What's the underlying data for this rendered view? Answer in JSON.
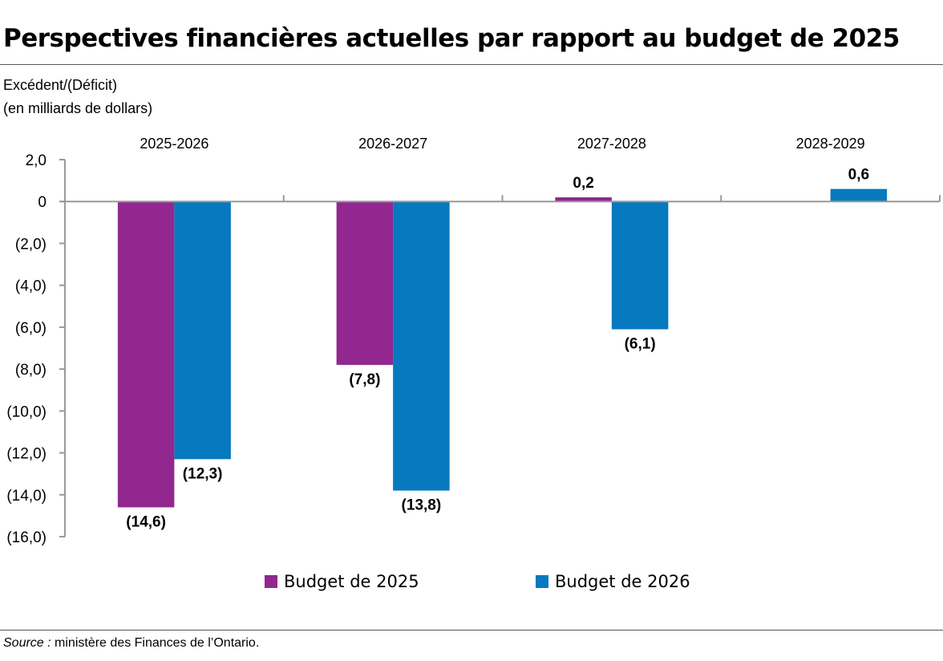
{
  "title": "Perspectives financières actuelles par rapport au budget de 2025",
  "source": {
    "label": "Source :",
    "text": " ministère des Finances de l’Ontario."
  },
  "chart_data": {
    "type": "bar",
    "title": "Perspectives financières actuelles par rapport au budget de 2025",
    "ylabel": [
      "Excédent/(Déficit)",
      "(en milliards de dollars)"
    ],
    "categories": [
      "2025-2026",
      "2026-2027",
      "2027-2028",
      "2028-2029"
    ],
    "series": [
      {
        "name": "Budget de 2025",
        "color": "#92278F",
        "values": [
          -14.6,
          -7.8,
          0.2,
          null
        ],
        "labels": [
          "(14,6)",
          "(7,8)",
          "0,2",
          ""
        ]
      },
      {
        "name": "Budget de 2026",
        "color": "#0779BF",
        "values": [
          -12.3,
          -13.8,
          -6.1,
          0.6
        ],
        "labels": [
          "(12,3)",
          "(13,8)",
          "(6,1)",
          "0,6"
        ]
      }
    ],
    "ylim": [
      -16,
      2
    ],
    "yticks": [
      2,
      0,
      -2,
      -4,
      -6,
      -8,
      -10,
      -12,
      -14,
      -16
    ],
    "ytick_labels": [
      "2,0",
      "0",
      "(2,0)",
      "(4,0)",
      "(6,0)",
      "(8,0)",
      "(10,0)",
      "(12,0)",
      "(14,0)",
      "(16,0)"
    ],
    "category_labels_position": "top",
    "grid": false,
    "legend": "bottom"
  }
}
